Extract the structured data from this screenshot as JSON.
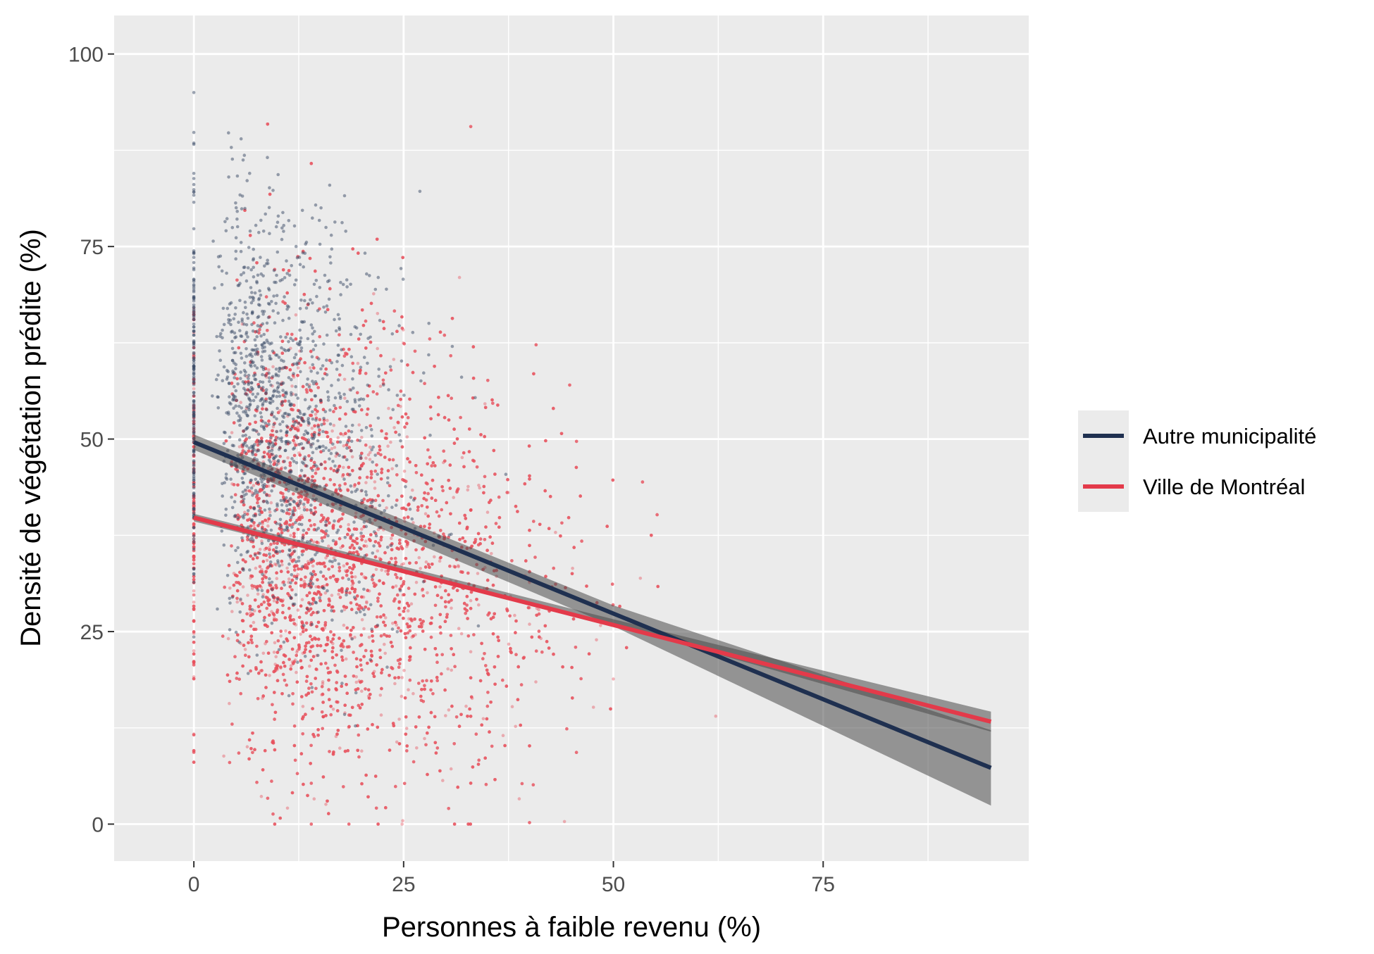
{
  "chart_data": {
    "type": "scatter",
    "title": "",
    "xlabel": "Personnes à faible revenu (%)",
    "ylabel": "Densité de végétation prédite (%)",
    "xlim": [
      -9.5,
      99.5
    ],
    "ylim": [
      -4.8,
      105
    ],
    "x_ticks": [
      0,
      25,
      50,
      75
    ],
    "y_ticks": [
      0,
      25,
      50,
      75,
      100
    ],
    "grid": true,
    "legend_position": "right",
    "series": [
      {
        "name": "Autre municipalité",
        "color": "#1f3050",
        "point_color": "#3a4a66",
        "point_count": 1400,
        "trend": {
          "x": [
            0,
            95
          ],
          "y": [
            49.6,
            7.3
          ]
        },
        "band": {
          "x": [
            0,
            50,
            95
          ],
          "lower": [
            48.6,
            25.7,
            2.4
          ],
          "upper": [
            50.6,
            28.4,
            12.2
          ]
        }
      },
      {
        "name": "Ville de Montréal",
        "color": "#e33a4a",
        "point_color": "#e8505e",
        "point_count": 7000,
        "trend": {
          "x": [
            0,
            95
          ],
          "y": [
            39.8,
            13.3
          ]
        },
        "band": {
          "x": [
            0,
            50,
            95
          ],
          "lower": [
            39.3,
            25.9,
            12.0
          ],
          "upper": [
            40.3,
            26.6,
            14.6
          ]
        }
      }
    ]
  }
}
